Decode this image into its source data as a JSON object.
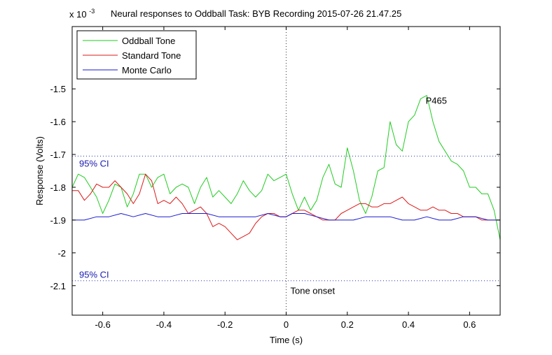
{
  "chart_data": {
    "type": "line",
    "title": "Neural responses to Oddball Task: BYB Recording 2015-07-26 21.47.25",
    "xlabel": "Time (s)",
    "ylabel": "Response (Volts)",
    "y_exponent_label": "x 10",
    "y_exponent_power": "-3",
    "xlim": [
      -0.7,
      0.7
    ],
    "ylim": [
      -2.19,
      -1.31
    ],
    "x_ticks": [
      -0.6,
      -0.4,
      -0.2,
      0,
      0.2,
      0.4,
      0.6
    ],
    "x_tick_labels": [
      "-0.6",
      "-0.4",
      "-0.2",
      "0",
      "0.2",
      "0.4",
      "0.6"
    ],
    "y_ticks": [
      -1.5,
      -1.6,
      -1.7,
      -1.8,
      -1.9,
      -2.0,
      -2.1
    ],
    "y_tick_labels": [
      "-1.5",
      "-1.6",
      "-1.7",
      "-1.8",
      "-1.9",
      "-2",
      "-2.1"
    ],
    "grid": false,
    "legend_position": "top-left",
    "ci_upper": -1.705,
    "ci_lower": -2.085,
    "ci_label": "95% CI",
    "ci_color": "#1a1ab0",
    "onset_x": 0,
    "onset_label": "Tone onset",
    "peak_label": "P465",
    "peak_label_x": 0.47,
    "peak_label_y": -1.535,
    "series": [
      {
        "name": "Oddball Tone",
        "color": "#22cc22",
        "x": [
          -0.7,
          -0.68,
          -0.66,
          -0.64,
          -0.62,
          -0.6,
          -0.58,
          -0.56,
          -0.54,
          -0.52,
          -0.5,
          -0.48,
          -0.46,
          -0.44,
          -0.42,
          -0.4,
          -0.38,
          -0.36,
          -0.34,
          -0.32,
          -0.3,
          -0.28,
          -0.26,
          -0.24,
          -0.22,
          -0.2,
          -0.18,
          -0.16,
          -0.14,
          -0.12,
          -0.1,
          -0.08,
          -0.06,
          -0.04,
          -0.02,
          0,
          0.02,
          0.04,
          0.06,
          0.08,
          0.1,
          0.12,
          0.14,
          0.16,
          0.18,
          0.2,
          0.22,
          0.24,
          0.26,
          0.28,
          0.3,
          0.32,
          0.34,
          0.36,
          0.38,
          0.4,
          0.42,
          0.44,
          0.46,
          0.48,
          0.5,
          0.52,
          0.54,
          0.56,
          0.58,
          0.6,
          0.62,
          0.64,
          0.66,
          0.68,
          0.7
        ],
        "values": [
          -1.8,
          -1.76,
          -1.77,
          -1.8,
          -1.83,
          -1.88,
          -1.84,
          -1.79,
          -1.8,
          -1.86,
          -1.82,
          -1.76,
          -1.76,
          -1.8,
          -1.77,
          -1.76,
          -1.82,
          -1.8,
          -1.79,
          -1.8,
          -1.85,
          -1.8,
          -1.77,
          -1.83,
          -1.81,
          -1.83,
          -1.85,
          -1.82,
          -1.78,
          -1.81,
          -1.83,
          -1.81,
          -1.76,
          -1.78,
          -1.77,
          -1.76,
          -1.82,
          -1.87,
          -1.83,
          -1.87,
          -1.84,
          -1.77,
          -1.73,
          -1.79,
          -1.8,
          -1.68,
          -1.75,
          -1.84,
          -1.88,
          -1.83,
          -1.75,
          -1.74,
          -1.6,
          -1.67,
          -1.69,
          -1.6,
          -1.58,
          -1.53,
          -1.52,
          -1.6,
          -1.66,
          -1.69,
          -1.72,
          -1.73,
          -1.75,
          -1.8,
          -1.8,
          -1.82,
          -1.82,
          -1.87,
          -1.96
        ]
      },
      {
        "name": "Standard Tone",
        "color": "#dd1a1a",
        "x": [
          -0.7,
          -0.68,
          -0.66,
          -0.64,
          -0.62,
          -0.6,
          -0.58,
          -0.56,
          -0.54,
          -0.52,
          -0.5,
          -0.48,
          -0.46,
          -0.44,
          -0.42,
          -0.4,
          -0.38,
          -0.36,
          -0.34,
          -0.32,
          -0.3,
          -0.28,
          -0.26,
          -0.24,
          -0.22,
          -0.2,
          -0.18,
          -0.16,
          -0.14,
          -0.12,
          -0.1,
          -0.08,
          -0.06,
          -0.04,
          -0.02,
          0,
          0.02,
          0.04,
          0.06,
          0.08,
          0.1,
          0.12,
          0.14,
          0.16,
          0.18,
          0.2,
          0.22,
          0.24,
          0.26,
          0.28,
          0.3,
          0.32,
          0.34,
          0.36,
          0.38,
          0.4,
          0.42,
          0.44,
          0.46,
          0.48,
          0.5,
          0.52,
          0.54,
          0.56,
          0.58,
          0.6,
          0.62,
          0.64,
          0.66,
          0.68,
          0.7
        ],
        "values": [
          -1.81,
          -1.81,
          -1.84,
          -1.82,
          -1.79,
          -1.8,
          -1.8,
          -1.78,
          -1.8,
          -1.82,
          -1.85,
          -1.82,
          -1.76,
          -1.78,
          -1.85,
          -1.84,
          -1.85,
          -1.83,
          -1.85,
          -1.88,
          -1.87,
          -1.86,
          -1.88,
          -1.92,
          -1.91,
          -1.92,
          -1.94,
          -1.96,
          -1.95,
          -1.94,
          -1.91,
          -1.89,
          -1.88,
          -1.88,
          -1.89,
          -1.89,
          -1.88,
          -1.87,
          -1.87,
          -1.88,
          -1.89,
          -1.9,
          -1.9,
          -1.9,
          -1.88,
          -1.87,
          -1.86,
          -1.85,
          -1.85,
          -1.86,
          -1.86,
          -1.85,
          -1.85,
          -1.84,
          -1.83,
          -1.85,
          -1.86,
          -1.87,
          -1.87,
          -1.86,
          -1.87,
          -1.87,
          -1.88,
          -1.88,
          -1.89,
          -1.89,
          -1.89,
          -1.9,
          -1.9,
          -1.9,
          -1.9
        ]
      },
      {
        "name": "Monte Carlo",
        "color": "#1a1ad0",
        "x": [
          -0.7,
          -0.66,
          -0.62,
          -0.58,
          -0.54,
          -0.5,
          -0.46,
          -0.42,
          -0.38,
          -0.34,
          -0.3,
          -0.26,
          -0.22,
          -0.18,
          -0.14,
          -0.1,
          -0.06,
          -0.02,
          0,
          0.02,
          0.06,
          0.1,
          0.14,
          0.18,
          0.22,
          0.26,
          0.3,
          0.34,
          0.38,
          0.42,
          0.46,
          0.5,
          0.54,
          0.58,
          0.62,
          0.66,
          0.7
        ],
        "values": [
          -1.9,
          -1.9,
          -1.89,
          -1.89,
          -1.88,
          -1.89,
          -1.88,
          -1.89,
          -1.89,
          -1.88,
          -1.88,
          -1.88,
          -1.89,
          -1.89,
          -1.89,
          -1.89,
          -1.88,
          -1.89,
          -1.89,
          -1.88,
          -1.88,
          -1.89,
          -1.9,
          -1.9,
          -1.9,
          -1.89,
          -1.89,
          -1.89,
          -1.9,
          -1.9,
          -1.89,
          -1.9,
          -1.9,
          -1.89,
          -1.89,
          -1.9,
          -1.9
        ]
      }
    ]
  }
}
